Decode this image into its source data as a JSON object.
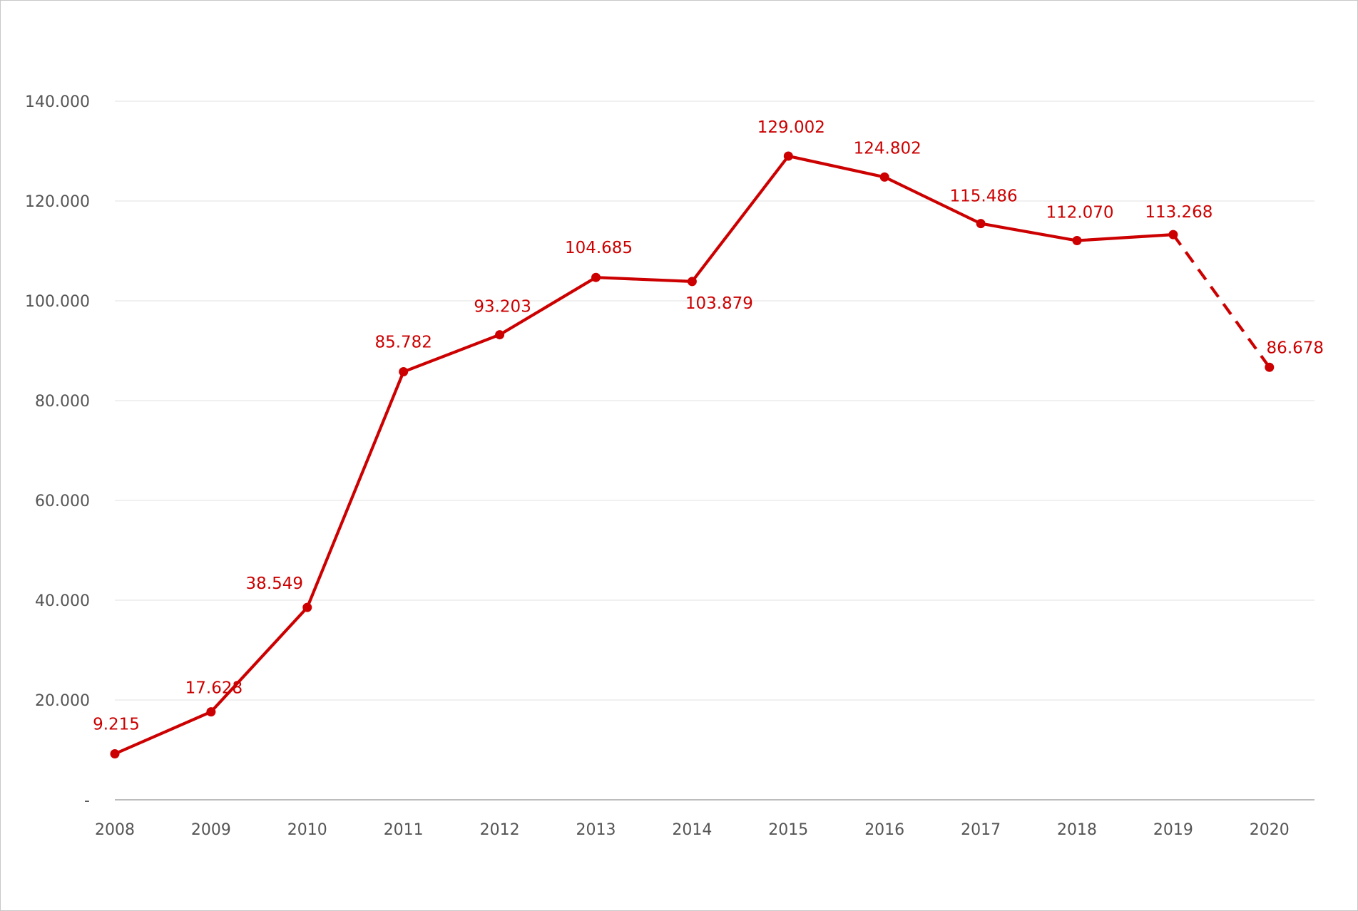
{
  "chart_data": {
    "type": "line",
    "title": "",
    "xlabel": "",
    "ylabel": "",
    "x": [
      "2008",
      "2009",
      "2010",
      "2011",
      "2012",
      "2013",
      "2014",
      "2015",
      "2016",
      "2017",
      "2018",
      "2019",
      "2020"
    ],
    "series": [
      {
        "values": [
          9215,
          17628,
          38549,
          85782,
          93203,
          104685,
          103879,
          129002,
          124802,
          115486,
          112070,
          113268,
          86678
        ],
        "labels": [
          "9.215",
          "17.628",
          "38.549",
          "85.782",
          "93.203",
          "104.685",
          "103.879",
          "129.002",
          "124.802",
          "115.486",
          "112.070",
          "113.268",
          "86.678"
        ],
        "dashed_last_segment": true
      }
    ],
    "ylim": [
      0,
      140000
    ],
    "y_ticks": [
      0,
      20000,
      40000,
      60000,
      80000,
      100000,
      120000,
      140000
    ],
    "y_tick_labels": [
      "-",
      "20.000",
      "40.000",
      "60.000",
      "80.000",
      "100.000",
      "120.000",
      "140.000"
    ],
    "grid": true,
    "legend": "none",
    "colors": {
      "line": "#cc0000",
      "grid": "#e6e6e6",
      "axis": "#a6a6a6",
      "tick_text": "#555555"
    }
  }
}
